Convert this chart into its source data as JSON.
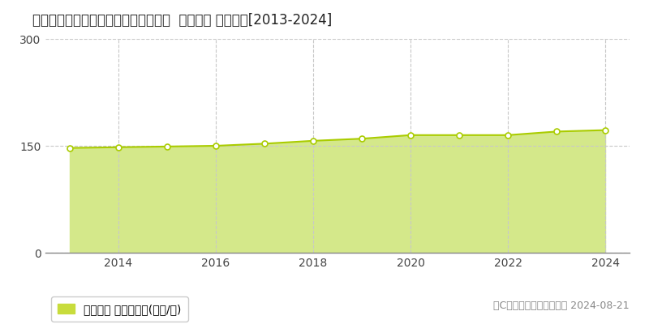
{
  "title": "東京都北区上中里１丁目２６番１８外  地価公示 地価推移[2013-2024]",
  "years": [
    2013,
    2014,
    2015,
    2016,
    2017,
    2018,
    2019,
    2020,
    2021,
    2022,
    2023,
    2024
  ],
  "values": [
    147,
    148,
    149,
    150,
    153,
    157,
    160,
    165,
    165,
    165,
    170,
    172
  ],
  "line_color": "#aacc00",
  "fill_color": "#d4e88a",
  "marker_face": "#ffffff",
  "marker_edge": "#aacc00",
  "grid_color": "#c8c8c8",
  "bg_color": "#ffffff",
  "ylim": [
    0,
    300
  ],
  "yticks": [
    0,
    150,
    300
  ],
  "xticks": [
    2014,
    2016,
    2018,
    2020,
    2022,
    2024
  ],
  "legend_label": "地価公示 平均嵪単価(万円/嵪)",
  "legend_color": "#c8dc3c",
  "copyright_text": "（C）土地価格ドットコム 2024-08-21",
  "title_fontsize": 12,
  "tick_fontsize": 10,
  "legend_fontsize": 10,
  "copyright_fontsize": 9
}
